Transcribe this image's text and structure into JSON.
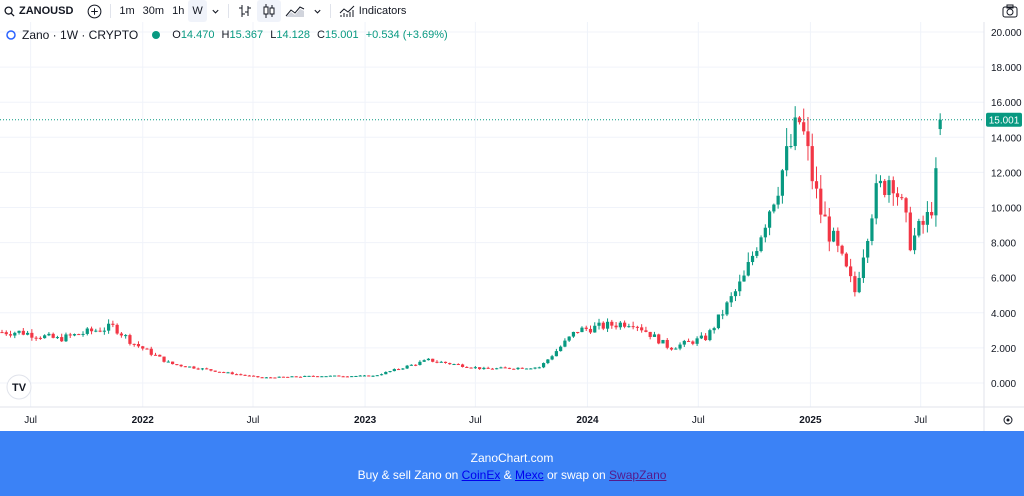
{
  "toolbar": {
    "symbol": "ZANOUSD",
    "intervals": [
      "1m",
      "30m",
      "1h",
      "W"
    ],
    "active_interval": "W",
    "indicators_label": "Indicators",
    "icons": [
      "search-icon",
      "add-symbol-icon",
      "chevron-down-icon",
      "bar-style-icon",
      "candle-style-icon",
      "area-style-icon",
      "indicators-icon",
      "camera-icon"
    ]
  },
  "legend": {
    "title": "Zano · 1W · CRYPTO",
    "o_label": "O",
    "o_value": "14.470",
    "h_label": "H",
    "h_value": "15.367",
    "l_label": "L",
    "l_value": "14.128",
    "c_label": "C",
    "c_value": "15.001",
    "change": "+0.534 (+3.69%)"
  },
  "price_tag": "15.001",
  "tv_logo": "TV",
  "banner": {
    "line1": "ZanoChart.com",
    "pre": "Buy & sell Zano on ",
    "link1": "CoinEx",
    "amp": " & ",
    "link2": "Mexc",
    "mid": " or swap on ",
    "link3": "SwapZano"
  },
  "colors": {
    "up": "#089981",
    "down": "#f23645",
    "banner": "#3b82f6",
    "grid": "#f0f3fa"
  },
  "chart_data": {
    "type": "candlestick",
    "title": "Zano · 1W · CRYPTO",
    "y_ticks": [
      "20.000",
      "18.000",
      "16.000",
      "14.000",
      "12.000",
      "10.000",
      "8.000",
      "6.000",
      "4.000",
      "2.000",
      "0.000"
    ],
    "x_ticks": [
      "Jul",
      "2022",
      "Jul",
      "2023",
      "Jul",
      "2024",
      "Jul",
      "2025",
      "Jul"
    ],
    "ylim": [
      -1.0,
      20.4
    ],
    "last_price": 15.001,
    "grid": true,
    "series_close_approx": [
      {
        "x": "2021-06",
        "y": 2.9
      },
      {
        "x": "2021-08",
        "y": 2.5
      },
      {
        "x": "2021-10",
        "y": 3.0
      },
      {
        "x": "2021-11",
        "y": 3.2
      },
      {
        "x": "2021-12",
        "y": 2.3
      },
      {
        "x": "2022-02",
        "y": 1.1
      },
      {
        "x": "2022-05",
        "y": 0.6
      },
      {
        "x": "2022-07",
        "y": 0.3
      },
      {
        "x": "2022-10",
        "y": 0.4
      },
      {
        "x": "2023-01",
        "y": 0.4
      },
      {
        "x": "2023-04",
        "y": 1.3
      },
      {
        "x": "2023-07",
        "y": 0.8
      },
      {
        "x": "2023-10",
        "y": 0.9
      },
      {
        "x": "2023-12",
        "y": 3.0
      },
      {
        "x": "2024-03",
        "y": 3.5
      },
      {
        "x": "2024-05",
        "y": 2.0
      },
      {
        "x": "2024-07",
        "y": 2.6
      },
      {
        "x": "2024-09",
        "y": 6.0
      },
      {
        "x": "2024-11",
        "y": 12.0
      },
      {
        "x": "2024-12",
        "y": 15.0
      },
      {
        "x": "2025-01",
        "y": 10.0
      },
      {
        "x": "2025-03",
        "y": 5.2
      },
      {
        "x": "2025-04",
        "y": 10.5
      },
      {
        "x": "2025-05",
        "y": 12.0
      },
      {
        "x": "2025-06",
        "y": 8.0
      },
      {
        "x": "2025-07",
        "y": 9.5
      },
      {
        "x": "2025-08",
        "y": 15.0
      }
    ]
  }
}
